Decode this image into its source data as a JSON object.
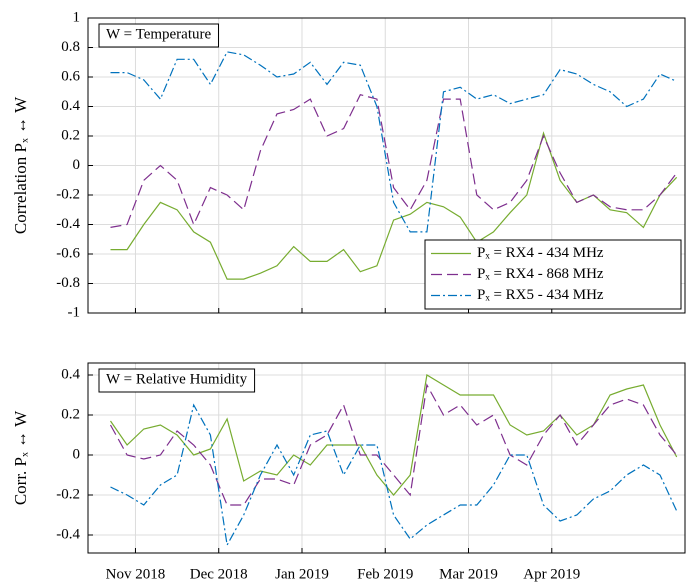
{
  "chart_data": [
    {
      "type": "line",
      "ylabel": "Correlation Pₓ ↔ W",
      "annotation": "W = Temperature",
      "legend": "lower right",
      "grid": true,
      "xlim": [
        -0.57,
        6.6
      ],
      "ylim": [
        -1,
        1
      ],
      "yticks": [
        -1,
        -0.8,
        -0.6,
        -0.4,
        -0.2,
        0,
        0.2,
        0.4,
        0.6,
        0.8,
        1
      ],
      "x": [
        -0.3,
        -0.1,
        0.1,
        0.3,
        0.5,
        0.7,
        0.9,
        1.1,
        1.3,
        1.5,
        1.7,
        1.9,
        2.1,
        2.3,
        2.5,
        2.7,
        2.9,
        3.1,
        3.3,
        3.5,
        3.7,
        3.9,
        4.1,
        4.3,
        4.5,
        4.7,
        4.9,
        5.1,
        5.3,
        5.5,
        5.7,
        5.9,
        6.1,
        6.3,
        6.5
      ],
      "series": [
        {
          "name": "Pₓ = RX4 - 434 MHz",
          "color": "#77ac30",
          "style": "solid",
          "values": [
            -0.57,
            -0.57,
            -0.4,
            -0.25,
            -0.3,
            -0.45,
            -0.52,
            -0.77,
            -0.77,
            -0.73,
            -0.68,
            -0.55,
            -0.65,
            -0.65,
            -0.57,
            -0.72,
            -0.68,
            -0.37,
            -0.33,
            -0.25,
            -0.28,
            -0.35,
            -0.52,
            -0.45,
            -0.32,
            -0.2,
            0.22,
            -0.1,
            -0.25,
            -0.2,
            -0.3,
            -0.32,
            -0.42,
            -0.2,
            -0.08
          ]
        },
        {
          "name": "Pₓ = RX4 - 868 MHz",
          "color": "#7e2f8e",
          "style": "dashed",
          "values": [
            -0.42,
            -0.4,
            -0.1,
            0.0,
            -0.1,
            -0.4,
            -0.15,
            -0.2,
            -0.3,
            0.1,
            0.35,
            0.38,
            0.45,
            0.2,
            0.25,
            0.48,
            0.45,
            -0.15,
            -0.3,
            -0.1,
            0.45,
            0.45,
            -0.2,
            -0.3,
            -0.25,
            -0.1,
            0.2,
            -0.05,
            -0.25,
            -0.2,
            -0.28,
            -0.3,
            -0.3,
            -0.2,
            -0.05
          ]
        },
        {
          "name": "Pₓ = RX5 - 434 MHz",
          "color": "#0072bd",
          "style": "dashdot",
          "values": [
            0.63,
            0.63,
            0.58,
            0.45,
            0.72,
            0.72,
            0.55,
            0.77,
            0.75,
            0.68,
            0.6,
            0.62,
            0.7,
            0.55,
            0.7,
            0.68,
            0.4,
            -0.25,
            -0.45,
            -0.45,
            0.5,
            0.53,
            0.45,
            0.48,
            0.42,
            0.45,
            0.48,
            0.65,
            0.62,
            0.55,
            0.5,
            0.4,
            0.45,
            0.62,
            0.57
          ]
        }
      ]
    },
    {
      "type": "line",
      "ylabel": "Corr. Pₓ ↔ W",
      "annotation": "W = Relative Humidity",
      "grid": true,
      "xlim": [
        -0.57,
        6.6
      ],
      "ylim": [
        -0.49,
        0.46
      ],
      "yticks": [
        -0.4,
        -0.2,
        0,
        0.2,
        0.4
      ],
      "xticks": [
        {
          "value": 0,
          "label": "Nov 2018"
        },
        {
          "value": 1,
          "label": "Dec 2018"
        },
        {
          "value": 2,
          "label": "Jan 2019"
        },
        {
          "value": 3,
          "label": "Feb 2019"
        },
        {
          "value": 4,
          "label": "Mar 2019"
        },
        {
          "value": 5,
          "label": "Apr 2019"
        }
      ],
      "x": [
        -0.3,
        -0.1,
        0.1,
        0.3,
        0.5,
        0.7,
        0.9,
        1.1,
        1.3,
        1.5,
        1.7,
        1.9,
        2.1,
        2.3,
        2.5,
        2.7,
        2.9,
        3.1,
        3.3,
        3.5,
        3.7,
        3.9,
        4.1,
        4.3,
        4.5,
        4.7,
        4.9,
        5.1,
        5.3,
        5.5,
        5.7,
        5.9,
        6.1,
        6.3,
        6.5
      ],
      "series": [
        {
          "color": "#77ac30",
          "style": "solid",
          "values": [
            0.17,
            0.05,
            0.13,
            0.15,
            0.1,
            0.0,
            0.03,
            0.18,
            -0.13,
            -0.08,
            -0.1,
            0.0,
            -0.05,
            0.05,
            0.05,
            0.05,
            -0.1,
            -0.2,
            -0.1,
            0.4,
            0.35,
            0.3,
            0.3,
            0.3,
            0.15,
            0.1,
            0.12,
            0.2,
            0.1,
            0.15,
            0.3,
            0.33,
            0.35,
            0.15,
            -0.01
          ]
        },
        {
          "color": "#7e2f8e",
          "style": "dashed",
          "values": [
            0.15,
            0.0,
            -0.02,
            0.0,
            0.12,
            0.05,
            -0.05,
            -0.25,
            -0.25,
            -0.12,
            -0.12,
            -0.15,
            0.05,
            0.1,
            0.25,
            0.0,
            0.0,
            -0.1,
            -0.2,
            0.35,
            0.2,
            0.25,
            0.15,
            0.2,
            0.0,
            -0.05,
            0.1,
            0.2,
            0.05,
            0.15,
            0.25,
            0.28,
            0.25,
            0.1,
            0.0
          ]
        },
        {
          "color": "#0072bd",
          "style": "dashdot",
          "values": [
            -0.16,
            -0.2,
            -0.25,
            -0.15,
            -0.1,
            0.25,
            0.1,
            -0.45,
            -0.3,
            -0.1,
            0.05,
            -0.1,
            0.1,
            0.12,
            -0.1,
            0.05,
            0.05,
            -0.3,
            -0.42,
            -0.35,
            -0.3,
            -0.25,
            -0.25,
            -0.15,
            0.0,
            0.0,
            -0.25,
            -0.33,
            -0.3,
            -0.22,
            -0.18,
            -0.1,
            -0.05,
            -0.1,
            -0.28
          ]
        }
      ]
    }
  ]
}
